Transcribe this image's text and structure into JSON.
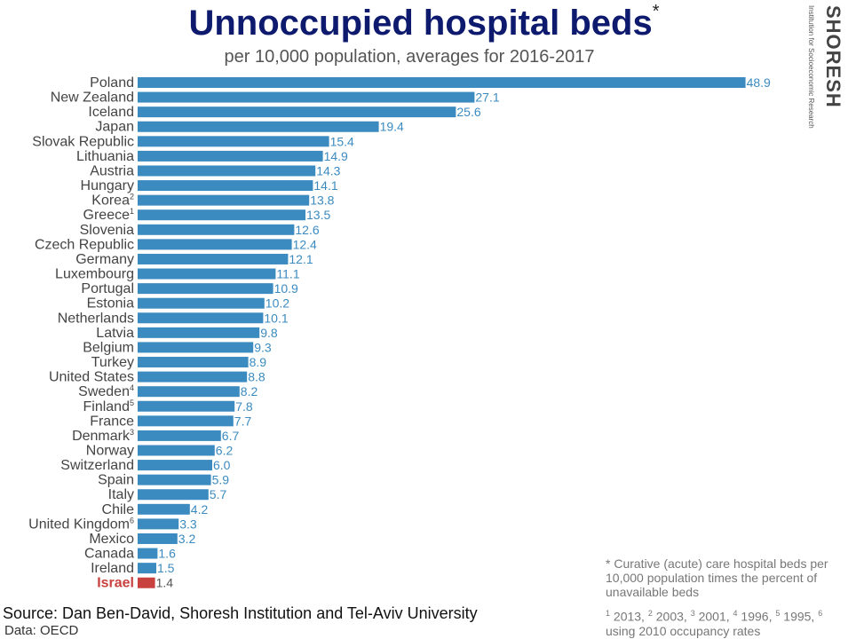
{
  "title": "Unnoccupied hospital beds",
  "title_marker": "*",
  "subtitle": "per 10,000 population, averages for 2016-2017",
  "logo": {
    "name": "SHORESH",
    "tagline": "Institution for Socioeconomic Research"
  },
  "source": "Source: Dan Ben-David, Shoresh Institution and Tel-Aviv University",
  "data_note": "Data: OECD",
  "footnote": "* Curative (acute) care hospital beds per 10,000 population times the percent of unavailable beds",
  "ref_notes": [
    {
      "mark": "1",
      "text": " 2013, "
    },
    {
      "mark": "2",
      "text": " 2003, "
    },
    {
      "mark": "3",
      "text": " 2001, "
    },
    {
      "mark": "4",
      "text": " 1996, "
    },
    {
      "mark": "5",
      "text": " 1995, "
    },
    {
      "mark": "6",
      "text": " using 2010 occupancy rates"
    }
  ],
  "colors": {
    "bar": "#3c8bc0",
    "highlight": "#c9413e",
    "title": "#0d1a6e"
  },
  "chart_data": {
    "type": "bar",
    "orientation": "horizontal",
    "title": "Unnoccupied hospital beds",
    "subtitle": "per 10,000 population, averages for 2016-2017",
    "xlim": [
      0,
      50
    ],
    "grid": false,
    "highlight_category": "Israel",
    "categories": [
      "Poland",
      "New Zealand",
      "Iceland",
      "Japan",
      "Slovak Republic",
      "Lithuania",
      "Austria",
      "Hungary",
      "Korea",
      "Greece",
      "Slovenia",
      "Czech Republic",
      "Germany",
      "Luxembourg",
      "Portugal",
      "Estonia",
      "Netherlands",
      "Latvia",
      "Belgium",
      "Turkey",
      "United States",
      "Sweden",
      "Finland",
      "France",
      "Denmark",
      "Norway",
      "Switzerland",
      "Spain",
      "Italy",
      "Chile",
      "United Kingdom",
      "Mexico",
      "Canada",
      "Ireland",
      "Israel"
    ],
    "category_marks": [
      "",
      "",
      "",
      "",
      "",
      "",
      "",
      "",
      "2",
      "1",
      "",
      "",
      "",
      "",
      "",
      "",
      "",
      "",
      "",
      "",
      "",
      "4",
      "5",
      "",
      "3",
      "",
      "",
      "",
      "",
      "",
      "6",
      "",
      "",
      "",
      ""
    ],
    "values": [
      48.9,
      27.1,
      25.6,
      19.4,
      15.4,
      14.9,
      14.3,
      14.1,
      13.8,
      13.5,
      12.6,
      12.4,
      12.1,
      11.1,
      10.9,
      10.2,
      10.1,
      9.8,
      9.3,
      8.9,
      8.8,
      8.2,
      7.8,
      7.7,
      6.7,
      6.2,
      6.0,
      5.9,
      5.7,
      4.2,
      3.3,
      3.2,
      1.6,
      1.5,
      1.4
    ],
    "value_labels": [
      "48.9",
      "27.1",
      "25.6",
      "19.4",
      "15.4",
      "14.9",
      "14.3",
      "14.1",
      "13.8",
      "13.5",
      "12.6",
      "12.4",
      "12.1",
      "11.1",
      "10.9",
      "10.2",
      "10.1",
      "9.8",
      "9.3",
      "8.9",
      "8.8",
      "8.2",
      "7.8",
      "7.7",
      "6.7",
      "6.2",
      "6.0",
      "5.9",
      "5.7",
      "4.2",
      "3.3",
      "3.2",
      "1.6",
      "1.5",
      "1.4"
    ]
  }
}
